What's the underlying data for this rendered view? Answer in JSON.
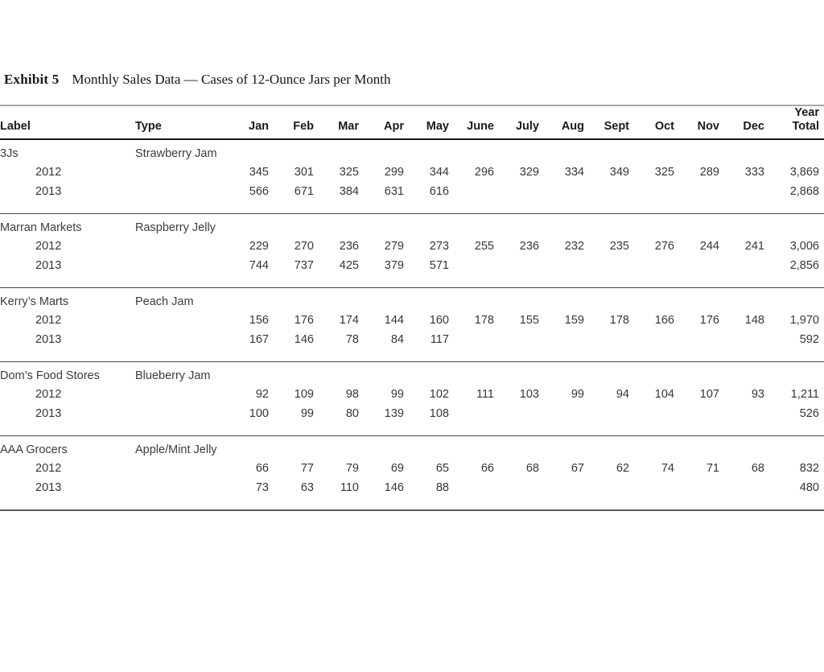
{
  "exhibit": {
    "label": "Exhibit 5",
    "title": "Monthly Sales Data — Cases of 12-Ounce Jars per Month"
  },
  "table": {
    "headers": {
      "label": "Label",
      "type": "Type",
      "months": [
        "Jan",
        "Feb",
        "Mar",
        "Apr",
        "May",
        "June",
        "July",
        "Aug",
        "Sept",
        "Oct",
        "Nov",
        "Dec"
      ],
      "total_line1": "Year",
      "total_line2": "Total"
    },
    "groups": [
      {
        "label": "3Js",
        "type": "Strawberry Jam",
        "rows": [
          {
            "year": "2012",
            "values": [
              "345",
              "301",
              "325",
              "299",
              "344",
              "296",
              "329",
              "334",
              "349",
              "325",
              "289",
              "333"
            ],
            "total": "3,869"
          },
          {
            "year": "2013",
            "values": [
              "566",
              "671",
              "384",
              "631",
              "616",
              "",
              "",
              "",
              "",
              "",
              "",
              ""
            ],
            "total": "2,868"
          }
        ]
      },
      {
        "label": "Marran Markets",
        "type": "Raspberry Jelly",
        "rows": [
          {
            "year": "2012",
            "values": [
              "229",
              "270",
              "236",
              "279",
              "273",
              "255",
              "236",
              "232",
              "235",
              "276",
              "244",
              "241"
            ],
            "total": "3,006"
          },
          {
            "year": "2013",
            "values": [
              "744",
              "737",
              "425",
              "379",
              "571",
              "",
              "",
              "",
              "",
              "",
              "",
              ""
            ],
            "total": "2,856"
          }
        ]
      },
      {
        "label": "Kerry’s Marts",
        "type": "Peach Jam",
        "rows": [
          {
            "year": "2012",
            "values": [
              "156",
              "176",
              "174",
              "144",
              "160",
              "178",
              "155",
              "159",
              "178",
              "166",
              "176",
              "148"
            ],
            "total": "1,970"
          },
          {
            "year": "2013",
            "values": [
              "167",
              "146",
              "78",
              "84",
              "117",
              "",
              "",
              "",
              "",
              "",
              "",
              ""
            ],
            "total": "592"
          }
        ]
      },
      {
        "label": "Dom’s Food Stores",
        "type": "Blueberry Jam",
        "rows": [
          {
            "year": "2012",
            "values": [
              "92",
              "109",
              "98",
              "99",
              "102",
              "111",
              "103",
              "99",
              "94",
              "104",
              "107",
              "93"
            ],
            "total": "1,211"
          },
          {
            "year": "2013",
            "values": [
              "100",
              "99",
              "80",
              "139",
              "108",
              "",
              "",
              "",
              "",
              "",
              "",
              ""
            ],
            "total": "526"
          }
        ]
      },
      {
        "label": "AAA Grocers",
        "type": "Apple/Mint Jelly",
        "rows": [
          {
            "year": "2012",
            "values": [
              "66",
              "77",
              "79",
              "69",
              "65",
              "66",
              "68",
              "67",
              "62",
              "74",
              "71",
              "68"
            ],
            "total": "832"
          },
          {
            "year": "2013",
            "values": [
              "73",
              "63",
              "110",
              "146",
              "88",
              "",
              "",
              "",
              "",
              "",
              "",
              ""
            ],
            "total": "480"
          }
        ]
      }
    ]
  }
}
